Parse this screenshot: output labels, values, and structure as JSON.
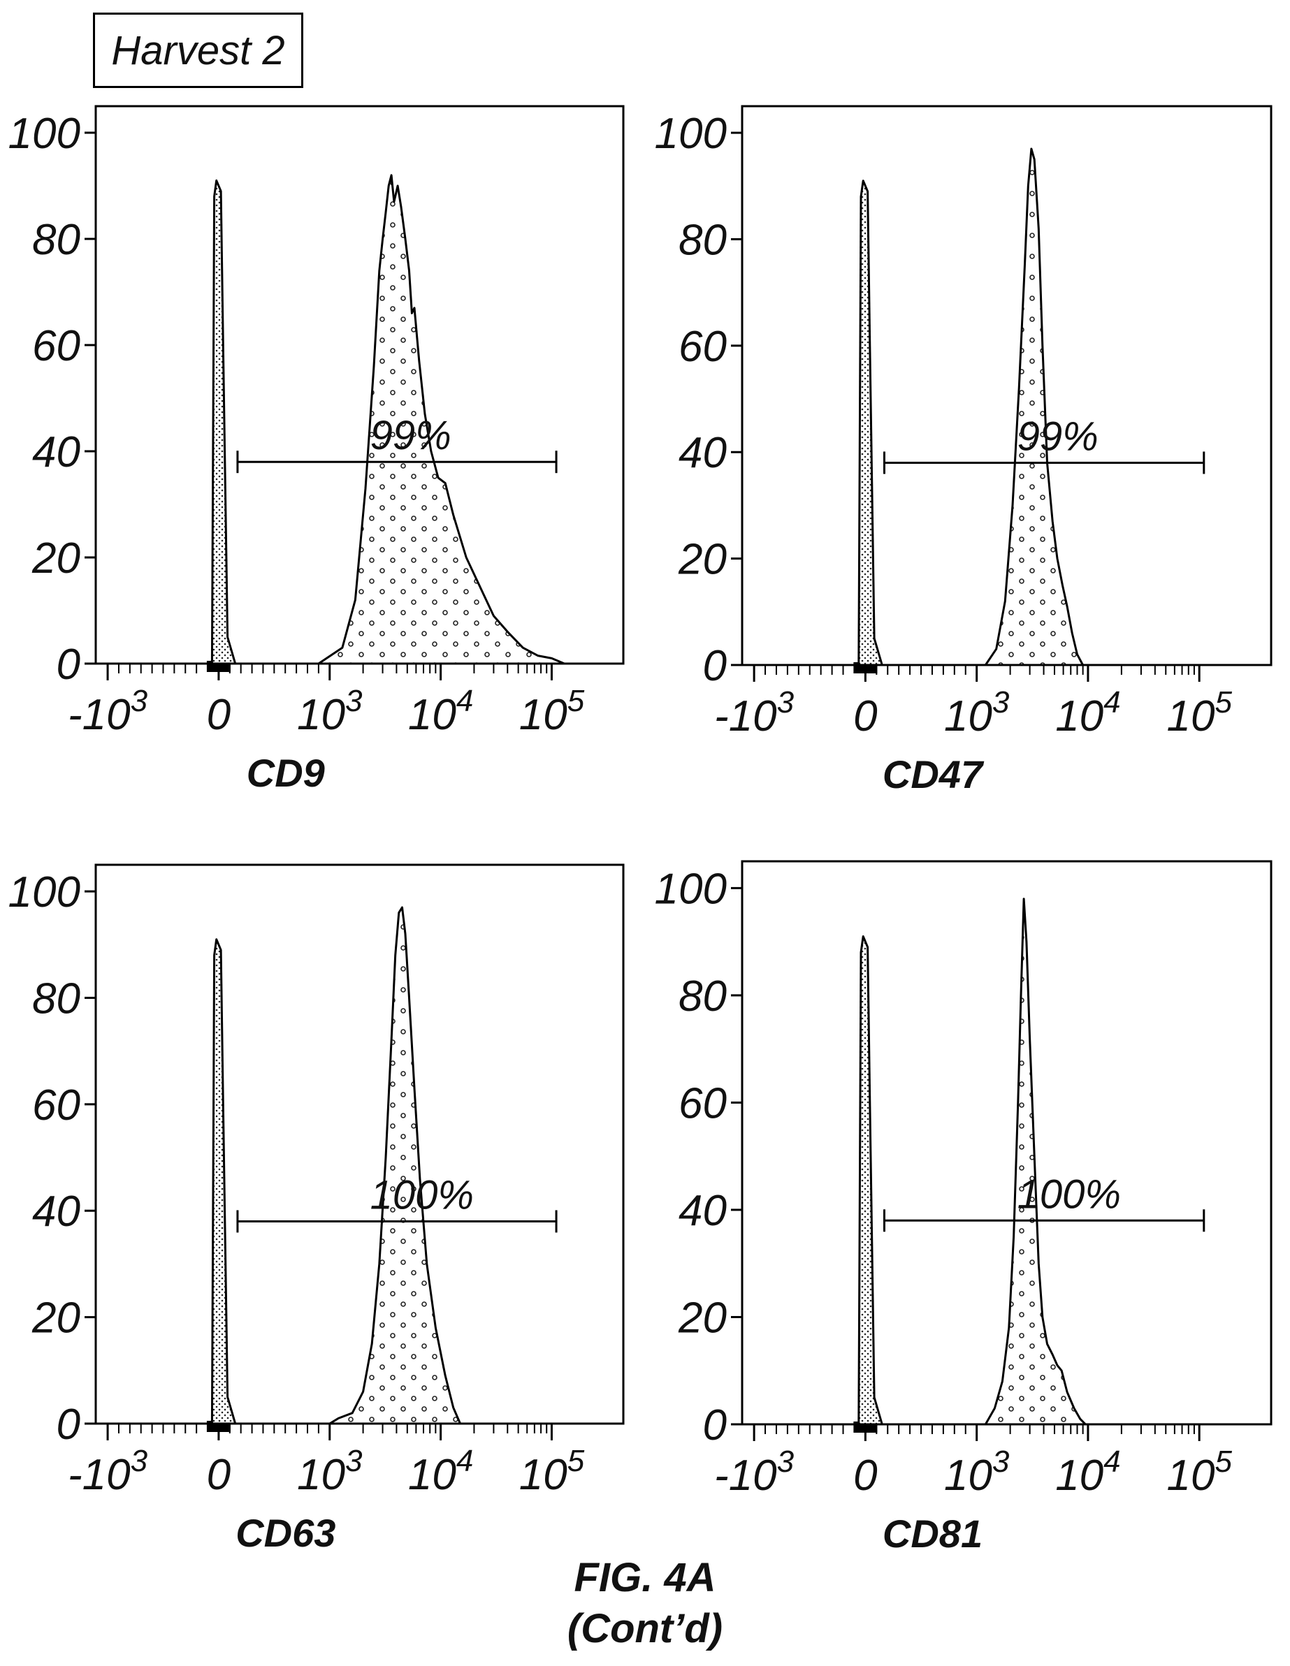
{
  "header": {
    "harvest_label": "Harvest 2"
  },
  "caption": {
    "figure": "FIG. 4A",
    "cont": "(Cont’d)"
  },
  "colors": {
    "ink": "#111111",
    "background": "#ffffff"
  },
  "chart_data": [
    {
      "type": "histogram",
      "xlabel": "CD9",
      "x_scale": "biexponential",
      "x_tick_labels": [
        "-10³",
        "0",
        "10³",
        "10⁴",
        "10⁵"
      ],
      "y_tick_labels": [
        "0",
        "20",
        "40",
        "60",
        "80",
        "100"
      ],
      "ylim": [
        0,
        105
      ],
      "gate": {
        "label": "99%",
        "y": 38,
        "x_range": [
          170,
          110000
        ]
      },
      "series": [
        {
          "role": "control",
          "x": [
            -150,
            -60,
            -40,
            -20,
            20,
            40,
            80,
            150
          ],
          "y": [
            0,
            0,
            88,
            91,
            89,
            60,
            5,
            0
          ]
        },
        {
          "role": "stained",
          "x": [
            900,
            1300,
            1700,
            2100,
            2500,
            2800,
            3000,
            3200,
            3400,
            3600,
            3800,
            4100,
            4400,
            4800,
            5200,
            5500,
            5800,
            6400,
            7200,
            8200,
            9500,
            11000,
            13000,
            17000,
            22000,
            30000,
            40000,
            55000,
            75000,
            100000,
            130000
          ],
          "y": [
            0,
            3,
            12,
            33,
            56,
            74,
            80,
            85,
            90,
            92,
            87,
            90,
            86,
            80,
            74,
            66,
            67,
            57,
            47,
            40,
            35,
            34,
            28,
            20,
            15,
            9,
            6,
            3,
            1.5,
            1,
            0
          ]
        }
      ]
    },
    {
      "type": "histogram",
      "xlabel": "CD47",
      "x_scale": "biexponential",
      "x_tick_labels": [
        "-10³",
        "0",
        "10³",
        "10⁴",
        "10⁵"
      ],
      "y_tick_labels": [
        "0",
        "20",
        "40",
        "60",
        "80",
        "100"
      ],
      "ylim": [
        0,
        105
      ],
      "gate": {
        "label": "99%",
        "y": 38,
        "x_range": [
          170,
          110000
        ]
      },
      "series": [
        {
          "role": "control",
          "x": [
            -150,
            -60,
            -40,
            -20,
            20,
            40,
            80,
            150
          ],
          "y": [
            0,
            0,
            88,
            91,
            89,
            60,
            5,
            0
          ]
        },
        {
          "role": "stained",
          "x": [
            1200,
            1500,
            1800,
            2100,
            2400,
            2700,
            2900,
            3100,
            3300,
            3600,
            3900,
            4300,
            4800,
            5300,
            5900,
            6500,
            7200,
            8000,
            9000
          ],
          "y": [
            0,
            3,
            12,
            30,
            52,
            75,
            90,
            97,
            95,
            82,
            60,
            38,
            27,
            20,
            15,
            11,
            6,
            2,
            0
          ]
        }
      ]
    },
    {
      "type": "histogram",
      "xlabel": "CD63",
      "x_scale": "biexponential",
      "x_tick_labels": [
        "-10³",
        "0",
        "10³",
        "10⁴",
        "10⁵"
      ],
      "y_tick_labels": [
        "0",
        "20",
        "40",
        "60",
        "80",
        "100"
      ],
      "ylim": [
        0,
        105
      ],
      "gate": {
        "label": "100%",
        "y": 38,
        "x_range": [
          170,
          110000
        ]
      },
      "series": [
        {
          "role": "control",
          "x": [
            -150,
            -60,
            -40,
            -20,
            20,
            40,
            80,
            150
          ],
          "y": [
            0,
            0,
            88,
            91,
            89,
            60,
            5,
            0
          ]
        },
        {
          "role": "stained",
          "x": [
            1000,
            1200,
            1600,
            2000,
            2400,
            2800,
            3200,
            3600,
            3900,
            4200,
            4500,
            4800,
            5200,
            5800,
            6500,
            7500,
            9000,
            11000,
            13000,
            15000
          ],
          "y": [
            0,
            1,
            2,
            6,
            15,
            30,
            50,
            72,
            88,
            96,
            97,
            92,
            80,
            63,
            46,
            30,
            18,
            9,
            3,
            0
          ]
        }
      ]
    },
    {
      "type": "histogram",
      "xlabel": "CD81",
      "x_scale": "biexponential",
      "x_tick_labels": [
        "-10³",
        "0",
        "10³",
        "10⁴",
        "10⁵"
      ],
      "y_tick_labels": [
        "0",
        "20",
        "40",
        "60",
        "80",
        "100"
      ],
      "ylim": [
        0,
        105
      ],
      "gate": {
        "label": "100%",
        "y": 38,
        "x_range": [
          170,
          110000
        ]
      },
      "series": [
        {
          "role": "control",
          "x": [
            -150,
            -60,
            -40,
            -20,
            20,
            40,
            80,
            150
          ],
          "y": [
            0,
            0,
            88,
            91,
            89,
            60,
            5,
            0
          ]
        },
        {
          "role": "stained",
          "x": [
            1200,
            1450,
            1700,
            1950,
            2150,
            2350,
            2500,
            2650,
            2800,
            3000,
            3300,
            3600,
            3900,
            4300,
            4800,
            5300,
            5800,
            6500,
            7500,
            8500,
            9500
          ],
          "y": [
            0,
            3,
            8,
            18,
            35,
            60,
            80,
            98,
            90,
            72,
            50,
            30,
            20,
            15,
            13,
            11,
            10,
            6,
            3,
            1,
            0
          ]
        }
      ]
    }
  ]
}
